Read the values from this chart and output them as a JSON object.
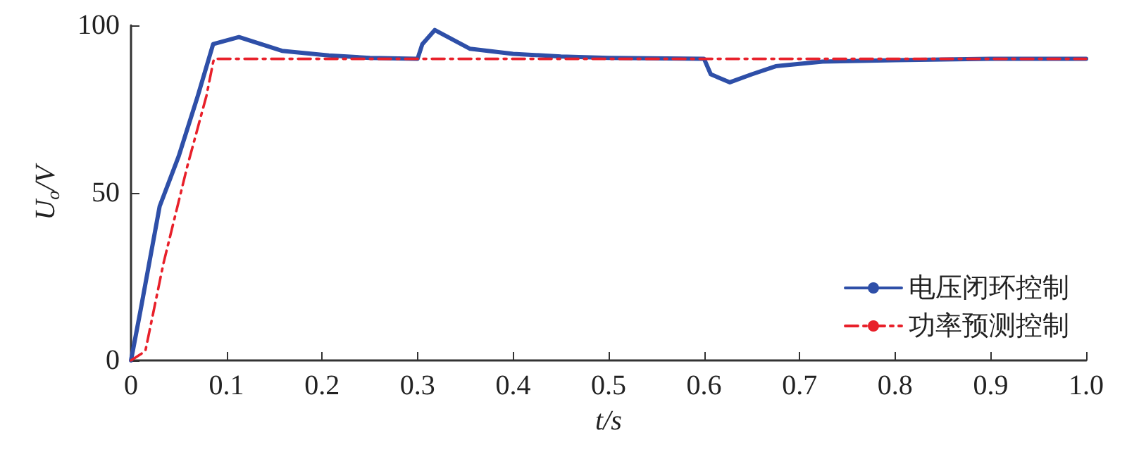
{
  "chart_data": {
    "type": "line",
    "xlabel": "t/s",
    "ylabel": "U$_{o}$/V",
    "xlim": [
      0,
      1.0
    ],
    "xticks": [
      0,
      0.1,
      0.2,
      0.3,
      0.4,
      0.5,
      0.6,
      0.7,
      0.8,
      0.9,
      {
        "value": 1.0,
        "label": "1.0"
      }
    ],
    "ylim": [
      0,
      100
    ],
    "yticks": [
      0,
      50,
      100
    ],
    "grid": false,
    "legend": "bottom right",
    "marker": "none",
    "series": [
      {
        "name": "电压闭环控制",
        "color": "#2e4fa8",
        "line_style": "solid",
        "x": [
          0,
          0.01,
          0.03,
          0.05,
          0.07,
          0.086,
          0.113,
          0.158,
          0.207,
          0.25,
          0.3,
          0.305,
          0.318,
          0.355,
          0.4,
          0.45,
          0.5,
          0.6,
          0.607,
          0.627,
          0.65,
          0.675,
          0.724,
          0.8,
          0.9,
          1.0
        ],
        "values": [
          0,
          15,
          46,
          61,
          79,
          94.4,
          96.5,
          92.4,
          91,
          90.3,
          90,
          94.4,
          98.6,
          93,
          91.5,
          90.7,
          90.3,
          90,
          85.4,
          83,
          85.4,
          87.8,
          89.2,
          89.6,
          90,
          90
        ]
      },
      {
        "name": "功率预测控制",
        "color": "#e8202a",
        "line_style": "dashed",
        "x": [
          0,
          0.015,
          0.034,
          0.059,
          0.079,
          0.086,
          0.087,
          0.3,
          0.6,
          1.0
        ],
        "values": [
          0,
          2.8,
          29,
          58,
          79,
          89,
          90,
          90,
          90,
          90
        ]
      }
    ]
  }
}
